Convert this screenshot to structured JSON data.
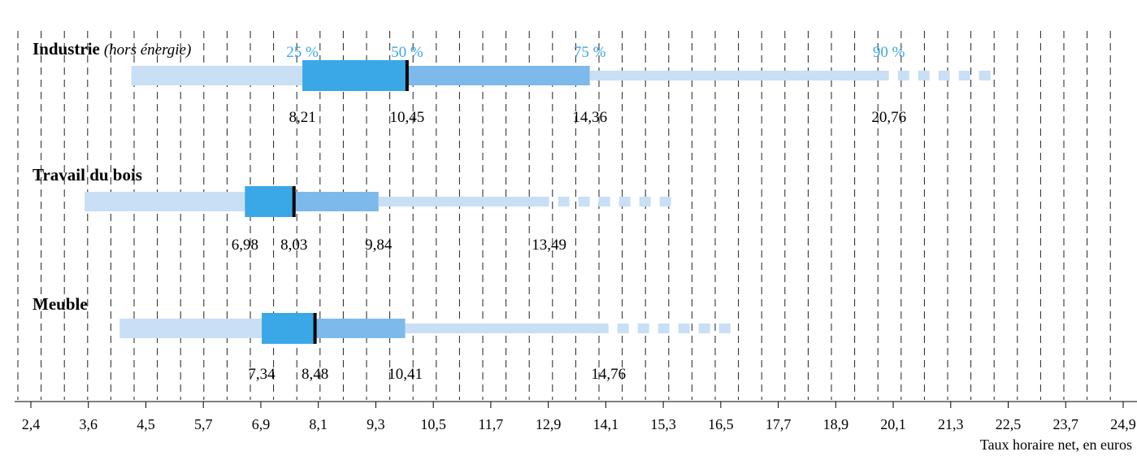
{
  "chart_data": {
    "type": "bar",
    "xlabel": "Taux horaire net, en euros",
    "x_ticks": [
      "2,4",
      "3,6",
      "4,5",
      "5,7",
      "6,9",
      "8,1",
      "9,3",
      "10,5",
      "11,7",
      "12,9",
      "14,1",
      "15,3",
      "16,5",
      "17,7",
      "18,9",
      "20,1",
      "21,3",
      "22,5",
      "23,7",
      "24,9"
    ],
    "xlim": [
      2.4,
      24.9
    ],
    "grid": true,
    "percentile_labels": [
      "25 %",
      "50 %",
      "75 %",
      "90 %"
    ],
    "colors": {
      "light": "#c8dff5",
      "mid": "#7db9ea",
      "dark": "#3aa8e6",
      "median": "#000000"
    },
    "series": [
      {
        "name": "Industrie",
        "note": "(hors énergie)",
        "min": 4.55,
        "p25": 8.21,
        "p50": 10.45,
        "p75": 14.36,
        "p90": 20.76,
        "max": 23.3,
        "labels": [
          "8,21",
          "10,45",
          "14,36",
          "20,76"
        ]
      },
      {
        "name": "Travail du bois",
        "note": "",
        "min": 3.55,
        "p25": 6.98,
        "p50": 8.03,
        "p75": 9.84,
        "p90": 13.49,
        "max": 16.1,
        "labels": [
          "6,98",
          "8,03",
          "9,84",
          "13,49"
        ]
      },
      {
        "name": "Meuble",
        "note": "",
        "min": 4.3,
        "p25": 7.34,
        "p50": 8.48,
        "p75": 10.41,
        "p90": 14.76,
        "max": 17.5,
        "labels": [
          "7,34",
          "8,48",
          "10,41",
          "14,76"
        ]
      }
    ]
  }
}
